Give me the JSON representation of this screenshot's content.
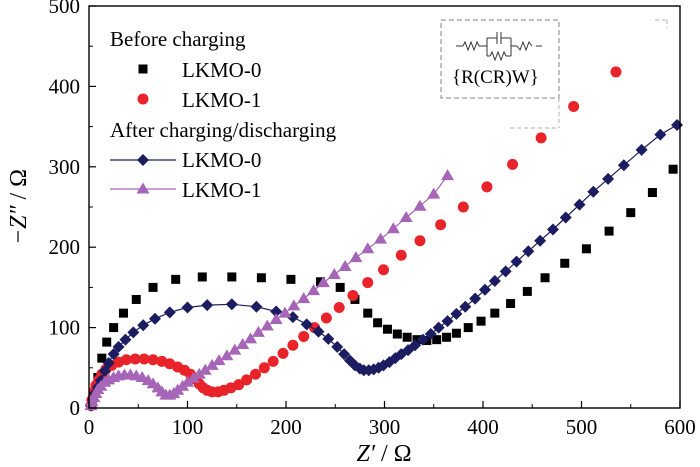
{
  "chart_data": {
    "type": "scatter",
    "xlabel_var": "Z′",
    "xlabel_unit": " / Ω",
    "ylabel_var": "−Z″",
    "ylabel_unit": " / Ω",
    "xlim": [
      0,
      600
    ],
    "ylim": [
      0,
      500
    ],
    "x_ticks": [
      0,
      100,
      200,
      300,
      400,
      500,
      600
    ],
    "y_ticks": [
      0,
      100,
      200,
      300,
      400,
      500
    ],
    "grid": false,
    "legend": {
      "placement": "top-left",
      "groups": [
        {
          "title": "Before charging",
          "series": [
            0,
            1
          ]
        },
        {
          "title": "After charging/discharging",
          "series": [
            2,
            3
          ]
        }
      ]
    },
    "inset": {
      "circuit_label": "{R(CR)W}",
      "elements": [
        "R",
        "C",
        "R",
        "W"
      ],
      "placement": "top-right"
    },
    "series": [
      {
        "name": "LKMO-0",
        "color": "#000000",
        "marker": "square",
        "line": false,
        "points": [
          [
            3,
            5
          ],
          [
            6,
            20
          ],
          [
            9,
            38
          ],
          [
            13,
            62
          ],
          [
            18,
            82
          ],
          [
            25,
            100
          ],
          [
            35,
            118
          ],
          [
            48,
            135
          ],
          [
            65,
            150
          ],
          [
            88,
            160
          ],
          [
            115,
            163
          ],
          [
            145,
            163
          ],
          [
            175,
            162
          ],
          [
            205,
            160
          ],
          [
            235,
            157
          ],
          [
            255,
            150
          ],
          [
            270,
            135
          ],
          [
            283,
            118
          ],
          [
            293,
            106
          ],
          [
            303,
            98
          ],
          [
            313,
            92
          ],
          [
            323,
            88
          ],
          [
            333,
            85
          ],
          [
            343,
            84
          ],
          [
            353,
            85
          ],
          [
            363,
            88
          ],
          [
            373,
            93
          ],
          [
            385,
            100
          ],
          [
            398,
            108
          ],
          [
            412,
            118
          ],
          [
            428,
            130
          ],
          [
            445,
            145
          ],
          [
            463,
            162
          ],
          [
            483,
            180
          ],
          [
            505,
            198
          ],
          [
            528,
            220
          ],
          [
            550,
            243
          ],
          [
            572,
            268
          ],
          [
            593,
            297
          ]
        ]
      },
      {
        "name": "LKMO-1",
        "color": "#e8232a",
        "marker": "circle",
        "line": false,
        "points": [
          [
            2,
            3
          ],
          [
            3,
            10
          ],
          [
            5,
            20
          ],
          [
            7,
            28
          ],
          [
            10,
            35
          ],
          [
            13,
            42
          ],
          [
            17,
            48
          ],
          [
            23,
            53
          ],
          [
            30,
            57
          ],
          [
            38,
            60
          ],
          [
            47,
            61
          ],
          [
            56,
            61
          ],
          [
            65,
            60
          ],
          [
            74,
            58
          ],
          [
            82,
            55
          ],
          [
            90,
            51
          ],
          [
            97,
            47
          ],
          [
            103,
            42
          ],
          [
            108,
            36
          ],
          [
            112,
            30
          ],
          [
            116,
            25
          ],
          [
            120,
            22
          ],
          [
            125,
            20
          ],
          [
            131,
            20
          ],
          [
            137,
            22
          ],
          [
            144,
            25
          ],
          [
            152,
            29
          ],
          [
            160,
            35
          ],
          [
            169,
            42
          ],
          [
            178,
            50
          ],
          [
            187,
            58
          ],
          [
            197,
            68
          ],
          [
            207,
            78
          ],
          [
            218,
            89
          ],
          [
            229,
            100
          ],
          [
            241,
            112
          ],
          [
            254,
            125
          ],
          [
            268,
            140
          ],
          [
            283,
            156
          ],
          [
            299,
            172
          ],
          [
            317,
            190
          ],
          [
            336,
            208
          ],
          [
            357,
            228
          ],
          [
            380,
            250
          ],
          [
            404,
            275
          ],
          [
            430,
            303
          ],
          [
            459,
            336
          ],
          [
            492,
            375
          ],
          [
            535,
            418
          ]
        ]
      },
      {
        "name": "LKMO-0",
        "color": "#1c1c60",
        "marker": "diamond",
        "line": true,
        "points": [
          [
            2,
            3
          ],
          [
            4,
            10
          ],
          [
            6,
            18
          ],
          [
            9,
            26
          ],
          [
            12,
            34
          ],
          [
            16,
            46
          ],
          [
            20,
            56
          ],
          [
            25,
            67
          ],
          [
            30,
            76
          ],
          [
            37,
            85
          ],
          [
            45,
            94
          ],
          [
            55,
            103
          ],
          [
            67,
            111
          ],
          [
            82,
            119
          ],
          [
            100,
            125
          ],
          [
            120,
            128
          ],
          [
            145,
            129
          ],
          [
            170,
            126
          ],
          [
            190,
            120
          ],
          [
            207,
            113
          ],
          [
            221,
            104
          ],
          [
            233,
            95
          ],
          [
            243,
            86
          ],
          [
            252,
            76
          ],
          [
            259,
            67
          ],
          [
            265,
            59
          ],
          [
            270,
            53
          ],
          [
            275,
            49
          ],
          [
            279,
            47
          ],
          [
            284,
            47
          ],
          [
            289,
            48
          ],
          [
            294,
            50
          ],
          [
            299,
            53
          ],
          [
            305,
            57
          ],
          [
            311,
            62
          ],
          [
            317,
            67
          ],
          [
            324,
            72
          ],
          [
            331,
            78
          ],
          [
            339,
            85
          ],
          [
            347,
            92
          ],
          [
            355,
            100
          ],
          [
            364,
            108
          ],
          [
            373,
            117
          ],
          [
            382,
            126
          ],
          [
            392,
            136
          ],
          [
            402,
            147
          ],
          [
            412,
            158
          ],
          [
            423,
            170
          ],
          [
            434,
            182
          ],
          [
            446,
            195
          ],
          [
            458,
            208
          ],
          [
            471,
            222
          ],
          [
            484,
            237
          ],
          [
            498,
            253
          ],
          [
            512,
            269
          ],
          [
            527,
            285
          ],
          [
            543,
            302
          ],
          [
            561,
            321
          ],
          [
            580,
            340
          ],
          [
            597,
            352
          ]
        ]
      },
      {
        "name": "LKMO-1",
        "color": "#a765b8",
        "marker": "triangle",
        "line": true,
        "points": [
          [
            2,
            3
          ],
          [
            3,
            8
          ],
          [
            5,
            13
          ],
          [
            7,
            18
          ],
          [
            9,
            23
          ],
          [
            12,
            27
          ],
          [
            16,
            32
          ],
          [
            20,
            35
          ],
          [
            25,
            38
          ],
          [
            30,
            40
          ],
          [
            36,
            41
          ],
          [
            42,
            41
          ],
          [
            48,
            40
          ],
          [
            54,
            38
          ],
          [
            60,
            34
          ],
          [
            65,
            30
          ],
          [
            70,
            25
          ],
          [
            74,
            20
          ],
          [
            78,
            16
          ],
          [
            82,
            16
          ],
          [
            86,
            18
          ],
          [
            90,
            22
          ],
          [
            95,
            27
          ],
          [
            100,
            32
          ],
          [
            106,
            37
          ],
          [
            112,
            42
          ],
          [
            118,
            47
          ],
          [
            125,
            53
          ],
          [
            132,
            59
          ],
          [
            140,
            65
          ],
          [
            148,
            72
          ],
          [
            156,
            79
          ],
          [
            164,
            86
          ],
          [
            172,
            94
          ],
          [
            181,
            102
          ],
          [
            190,
            110
          ],
          [
            199,
            118
          ],
          [
            208,
            127
          ],
          [
            218,
            136
          ],
          [
            228,
            146
          ],
          [
            238,
            156
          ],
          [
            249,
            166
          ],
          [
            260,
            176
          ],
          [
            271,
            187
          ],
          [
            283,
            198
          ],
          [
            296,
            210
          ],
          [
            309,
            223
          ],
          [
            322,
            237
          ],
          [
            336,
            251
          ],
          [
            350,
            266
          ],
          [
            364,
            289
          ]
        ]
      }
    ]
  }
}
